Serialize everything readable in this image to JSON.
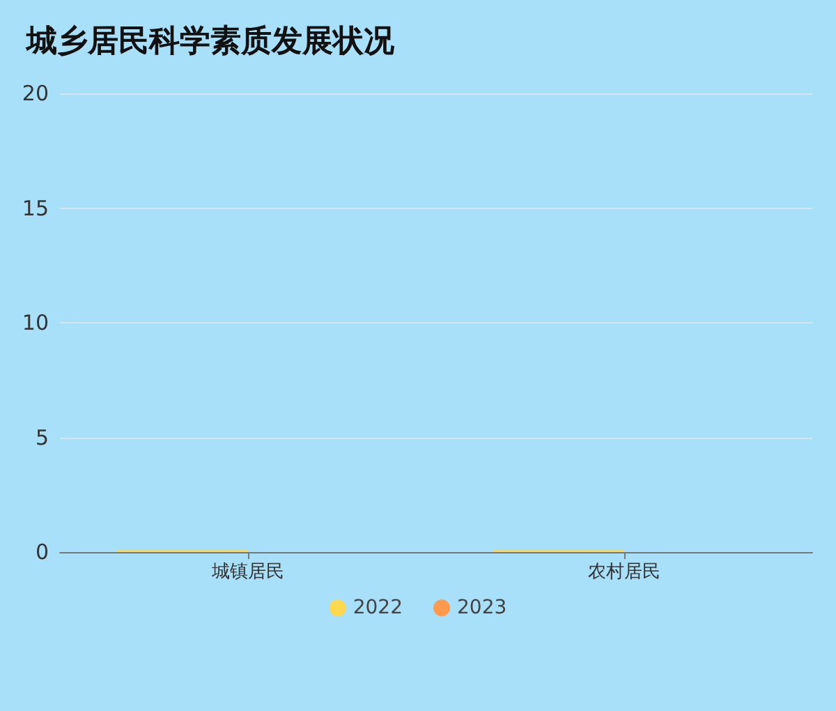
{
  "chart_data": {
    "type": "bar",
    "title": "城乡居民科学素质发展状况",
    "categories": [
      "城镇居民",
      "农村居民"
    ],
    "series": [
      {
        "name": "2022",
        "color": "#ffd84d",
        "values": [
          0.1,
          0.1
        ]
      },
      {
        "name": "2023",
        "color": "#ff9a4d",
        "values": [
          0,
          0
        ]
      }
    ],
    "ylim": [
      0,
      20
    ],
    "yticks": [
      0,
      5,
      10,
      15,
      20
    ],
    "grid": "y",
    "legend": "bottom"
  }
}
